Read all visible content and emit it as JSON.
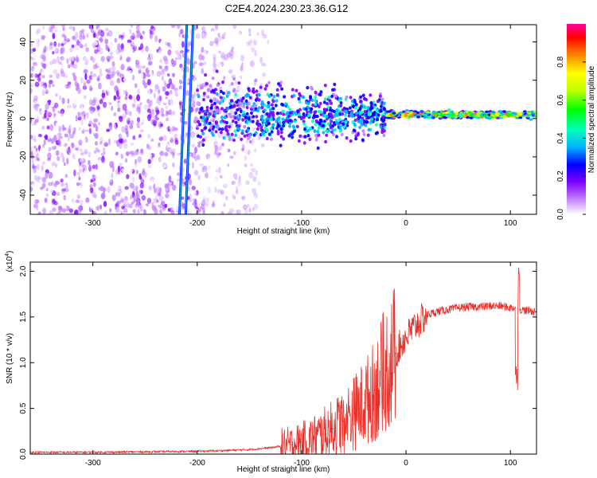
{
  "figure": {
    "title": "C2E4.2024.230.23.36.G12"
  },
  "chart_data": [
    {
      "type": "heatmap",
      "title": "C2E4.2024.230.23.36.G12",
      "xlabel": "Height of straight line (km)",
      "ylabel": "Frequency (Hz)",
      "xlim": [
        -360,
        125
      ],
      "ylim": [
        -50,
        49
      ],
      "xticks": [
        -300,
        -200,
        -100,
        0,
        100
      ],
      "yticks": [
        -40,
        -20,
        0,
        20,
        40
      ],
      "xtick_labels": [
        "-300",
        "-200",
        "-100",
        "0",
        "100"
      ],
      "ytick_labels": [
        "-40",
        "-20",
        "0",
        "20",
        "40"
      ],
      "colorbar": {
        "label": "Normalized spectral amplitude",
        "range": [
          0,
          1
        ],
        "ticks": [
          0.0,
          0.2,
          0.4,
          0.6,
          0.8
        ],
        "tick_labels": [
          "0.0",
          "0.2",
          "0.4",
          "0.6",
          "0.8"
        ],
        "colormap": [
          "#ffffff",
          "#c080ff",
          "#8000ff",
          "#0000ff",
          "#00b0ff",
          "#00ffc0",
          "#00ff00",
          "#c0ff00",
          "#ffff00",
          "#ff8000",
          "#ff0000",
          "#ff00a0"
        ]
      },
      "features": {
        "noise_region_x": [
          -360,
          -140
        ],
        "streak_1": {
          "x_at_top": -210,
          "x_at_bottom": -217,
          "y_range": [
            -50,
            49
          ]
        },
        "streak_2": {
          "x_at_top": -204,
          "x_at_bottom": -211,
          "y_range": [
            -50,
            49
          ]
        },
        "signal_band_x": [
          -200,
          125
        ],
        "signal_center_freq_hz": 2
      }
    },
    {
      "type": "line",
      "xlabel": "Height of straight line (km)",
      "ylabel": "SNR (10 * v/v)",
      "yscale_label": "(x10",
      "yscale_exponent": "4",
      "xlim": [
        -360,
        125
      ],
      "ylim": [
        0,
        2.1
      ],
      "xticks": [
        -300,
        -200,
        -100,
        0,
        100
      ],
      "yticks": [
        0.0,
        0.5,
        1.0,
        1.5,
        2.0
      ],
      "xtick_labels": [
        "-300",
        "-200",
        "-100",
        "0",
        "100"
      ],
      "ytick_labels": [
        "0.0",
        "0.5",
        "1.0",
        "1.5",
        "2.0"
      ],
      "series": [
        {
          "name": "SNR",
          "color": "#e8302a",
          "x": [
            -360,
            -300,
            -250,
            -200,
            -170,
            -150,
            -130,
            -110,
            -100,
            -90,
            -80,
            -70,
            -60,
            -50,
            -45,
            -40,
            -35,
            -30,
            -25,
            -20,
            -15,
            -10,
            -5,
            0,
            10,
            20,
            30,
            40,
            50,
            60,
            70,
            80,
            90,
            100,
            105,
            110,
            115,
            125
          ],
          "values": [
            0.02,
            0.02,
            0.025,
            0.03,
            0.04,
            0.05,
            0.07,
            0.1,
            0.13,
            0.17,
            0.22,
            0.28,
            0.36,
            0.45,
            0.5,
            0.56,
            0.62,
            0.7,
            0.8,
            0.92,
            1.0,
            1.1,
            1.2,
            1.28,
            1.42,
            1.52,
            1.56,
            1.58,
            1.6,
            1.61,
            1.61,
            1.62,
            1.62,
            1.6,
            1.6,
            1.58,
            1.57,
            1.56
          ]
        }
      ]
    }
  ]
}
